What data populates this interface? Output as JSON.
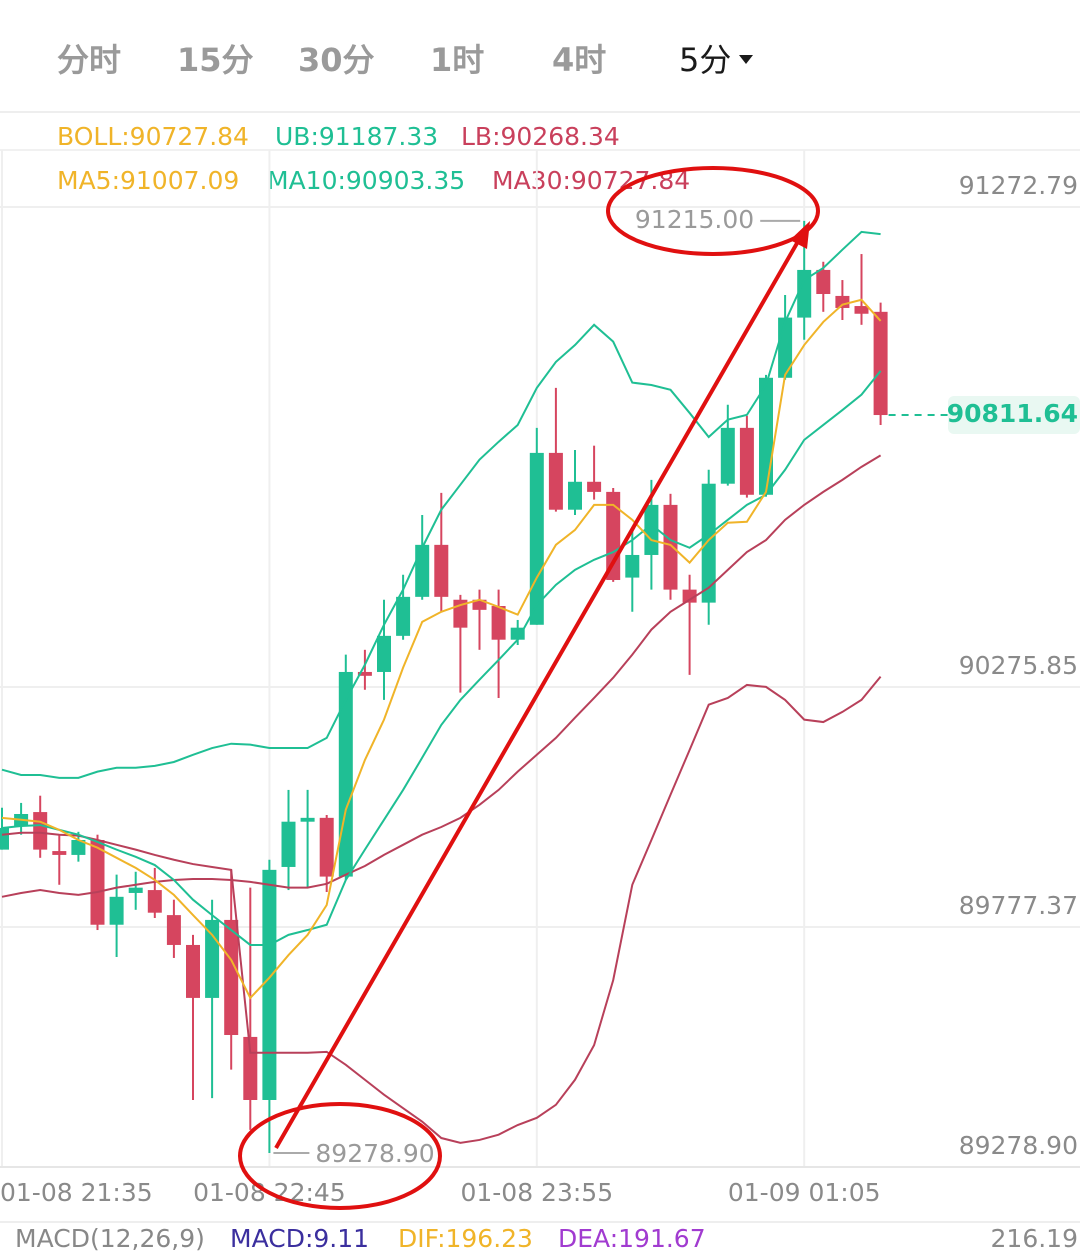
{
  "tabs": [
    {
      "text": "分时"
    },
    {
      "text": "15分"
    },
    {
      "text": "30分"
    },
    {
      "text": "1时"
    },
    {
      "text": "4时"
    },
    {
      "text": "5分",
      "selected": true
    }
  ],
  "chart_data": {
    "type": "candlestick",
    "legend_rows": [
      [
        {
          "text": "BOLL:90727.84",
          "color": "#f0b429"
        },
        {
          "text": "UB:91187.33",
          "color": "#1fbf94"
        },
        {
          "text": "LB:90268.34",
          "color": "#c9405c"
        }
      ],
      [
        {
          "text": "MA5:91007.09",
          "color": "#f0b429"
        },
        {
          "text": "MA10:90903.35",
          "color": "#1fbf94"
        },
        {
          "text": "MA30:90727.84",
          "color": "#c9405c"
        }
      ]
    ],
    "categories": [
      "01-08 21:35",
      null,
      null,
      null,
      null,
      null,
      null,
      null,
      null,
      null,
      null,
      null,
      null,
      null,
      "01-08 22:45",
      null,
      null,
      null,
      null,
      null,
      null,
      null,
      null,
      null,
      null,
      null,
      null,
      null,
      "01-08 23:55",
      null,
      null,
      null,
      null,
      null,
      null,
      null,
      null,
      null,
      null,
      null,
      null,
      null,
      "01-09 01:05",
      null,
      null,
      null,
      null
    ],
    "open": [
      89909,
      89958,
      89987,
      89906,
      89898,
      89929,
      89753,
      89819,
      89825,
      89773,
      89711,
      89601,
      89763,
      89520,
      89389,
      89873,
      89967,
      89975,
      89853,
      90278,
      90278,
      90353,
      90434,
      90542,
      90428,
      90428,
      90415,
      90345,
      90376,
      90733,
      90615,
      90673,
      90652,
      90474,
      90521,
      90625,
      90449,
      90422,
      90669,
      90785,
      90646,
      90889,
      91014,
      91113,
      91059,
      91038,
      91026
    ],
    "high": [
      89996,
      90006,
      90021,
      89940,
      89946,
      89940,
      89857,
      89863,
      89871,
      89805,
      89732,
      89805,
      89867,
      89830,
      89888,
      90033,
      90033,
      89981,
      90314,
      90324,
      90428,
      90480,
      90604,
      90650,
      90438,
      90449,
      90449,
      90386,
      90785,
      90868,
      90739,
      90748,
      90660,
      90573,
      90677,
      90648,
      90480,
      90698,
      90833,
      90810,
      90895,
      91061,
      91215.0,
      91130,
      91092,
      91146,
      91045
    ],
    "low": [
      89909,
      89940,
      89892,
      89836,
      89884,
      89742,
      89686,
      89784,
      89767,
      89684,
      89389,
      89393,
      89452,
      89327,
      89278.9,
      89825,
      89830,
      89821,
      89846,
      90241,
      90220,
      90345,
      90428,
      90403,
      90235,
      90324,
      90224,
      90334,
      90376,
      90611,
      90604,
      90636,
      90465,
      90403,
      90449,
      90428,
      90272,
      90376,
      90665,
      90640,
      90642,
      90885,
      90968,
      91026,
      91009,
      90999,
      90791
    ],
    "close": [
      89954,
      89983,
      89909,
      89898,
      89929,
      89753,
      89811,
      89830,
      89778,
      89711,
      89601,
      89763,
      89524,
      89389,
      89867,
      89967,
      89975,
      89853,
      90278,
      90270,
      90353,
      90434,
      90542,
      90434,
      90370,
      90407,
      90345,
      90370,
      90733,
      90615,
      90673,
      90652,
      90469,
      90521,
      90625,
      90449,
      90422,
      90669,
      90785,
      90646,
      90889,
      91014,
      91113,
      91063,
      91034,
      91022,
      90811.64
    ],
    "series": [
      {
        "color": "#1fbf94",
        "values": [
          90075,
          90064,
          90064,
          90058,
          90058,
          90071,
          90079,
          90079,
          90083,
          90091,
          90106,
          90120,
          90129,
          90127,
          90120,
          90120,
          90120,
          90141,
          90220,
          90293,
          90376,
          90449,
          90536,
          90615,
          90667,
          90719,
          90756,
          90791,
          90868,
          90922,
          90957,
          90999,
          90964,
          90879,
          90874,
          90864,
          90816,
          90766,
          90802,
          90812,
          90874,
          91005,
          91092,
          91117,
          91155,
          91192,
          91187.33
        ]
      },
      {
        "color": "#b8405a",
        "values": [
          89940,
          89944,
          89944,
          89940,
          89938,
          89929,
          89919,
          89909,
          89898,
          89888,
          89879,
          89873,
          89867,
          89487,
          89487,
          89487,
          89487,
          89489,
          89462,
          89431,
          89400,
          89372,
          89344,
          89310,
          89300,
          89306,
          89317,
          89337,
          89352,
          89379,
          89431,
          89503,
          89638,
          89836,
          89929,
          90023,
          90116,
          90210,
          90224,
          90251,
          90247,
          90220,
          90179,
          90174,
          90195,
          90220,
          90268.34
        ]
      },
      {
        "color": "#b8405a",
        "values": [
          89811,
          89819,
          89825,
          89819,
          89815,
          89821,
          89830,
          89836,
          89842,
          89846,
          89848,
          89848,
          89846,
          89842,
          89836,
          89830,
          89830,
          89838,
          89857,
          89875,
          89898,
          89919,
          89940,
          89956,
          89975,
          90002,
          90033,
          90071,
          90106,
          90141,
          90183,
          90224,
          90266,
          90314,
          90366,
          90403,
          90428,
          90453,
          90490,
          90527,
          90552,
          90594,
          90625,
          90652,
          90677,
          90704,
          90727.84
        ]
      },
      {
        "color": "#1fbf94",
        "values": [
          89954,
          89958,
          89960,
          89950,
          89940,
          89925,
          89909,
          89894,
          89877,
          89846,
          89805,
          89773,
          89742,
          89711,
          89711,
          89732,
          89742,
          89753,
          89846,
          89909,
          89971,
          90033,
          90100,
          90168,
          90220,
          90262,
          90303,
          90345,
          90417,
          90459,
          90490,
          90511,
          90527,
          90552,
          90584,
          90552,
          90536,
          90563,
          90594,
          90625,
          90646,
          90698,
          90760,
          90791,
          90822,
          90854,
          90903.35
        ]
      },
      {
        "color": "#f0b429",
        "values": [
          89975,
          89971,
          89967,
          89950,
          89929,
          89913,
          89892,
          89871,
          89846,
          89815,
          89773,
          89732,
          89680,
          89601,
          89643,
          89690,
          89732,
          89794,
          89992,
          90095,
          90179,
          90287,
          90382,
          90403,
          90417,
          90428,
          90413,
          90397,
          90474,
          90542,
          90573,
          90625,
          90625,
          90594,
          90552,
          90542,
          90505,
          90552,
          90588,
          90590,
          90652,
          90895,
          90957,
          91005,
          91041,
          91051,
          91007.09
        ]
      }
    ],
    "up_color": "#1fbf94",
    "down_color": "#d6455f",
    "ylim": [
      89278.9,
      91272.79
    ],
    "yticks": [
      91272.79,
      90275.85,
      89777.37,
      {
        "value": 89278.9,
        "label": "89278.90"
      }
    ],
    "grid": true,
    "high_label": "91215.00",
    "low_label": "89278.90",
    "macd_row": [
      {
        "text": "MACD(12,26,9)",
        "color": "#888888"
      },
      {
        "text": "MACD:9.11",
        "color": "#3b2f9e"
      },
      {
        "text": "DIF:196.23",
        "color": "#f0b429"
      },
      {
        "text": "DEA:191.67",
        "color": "#a13bd0"
      }
    ],
    "macd_axis": "216.19"
  }
}
